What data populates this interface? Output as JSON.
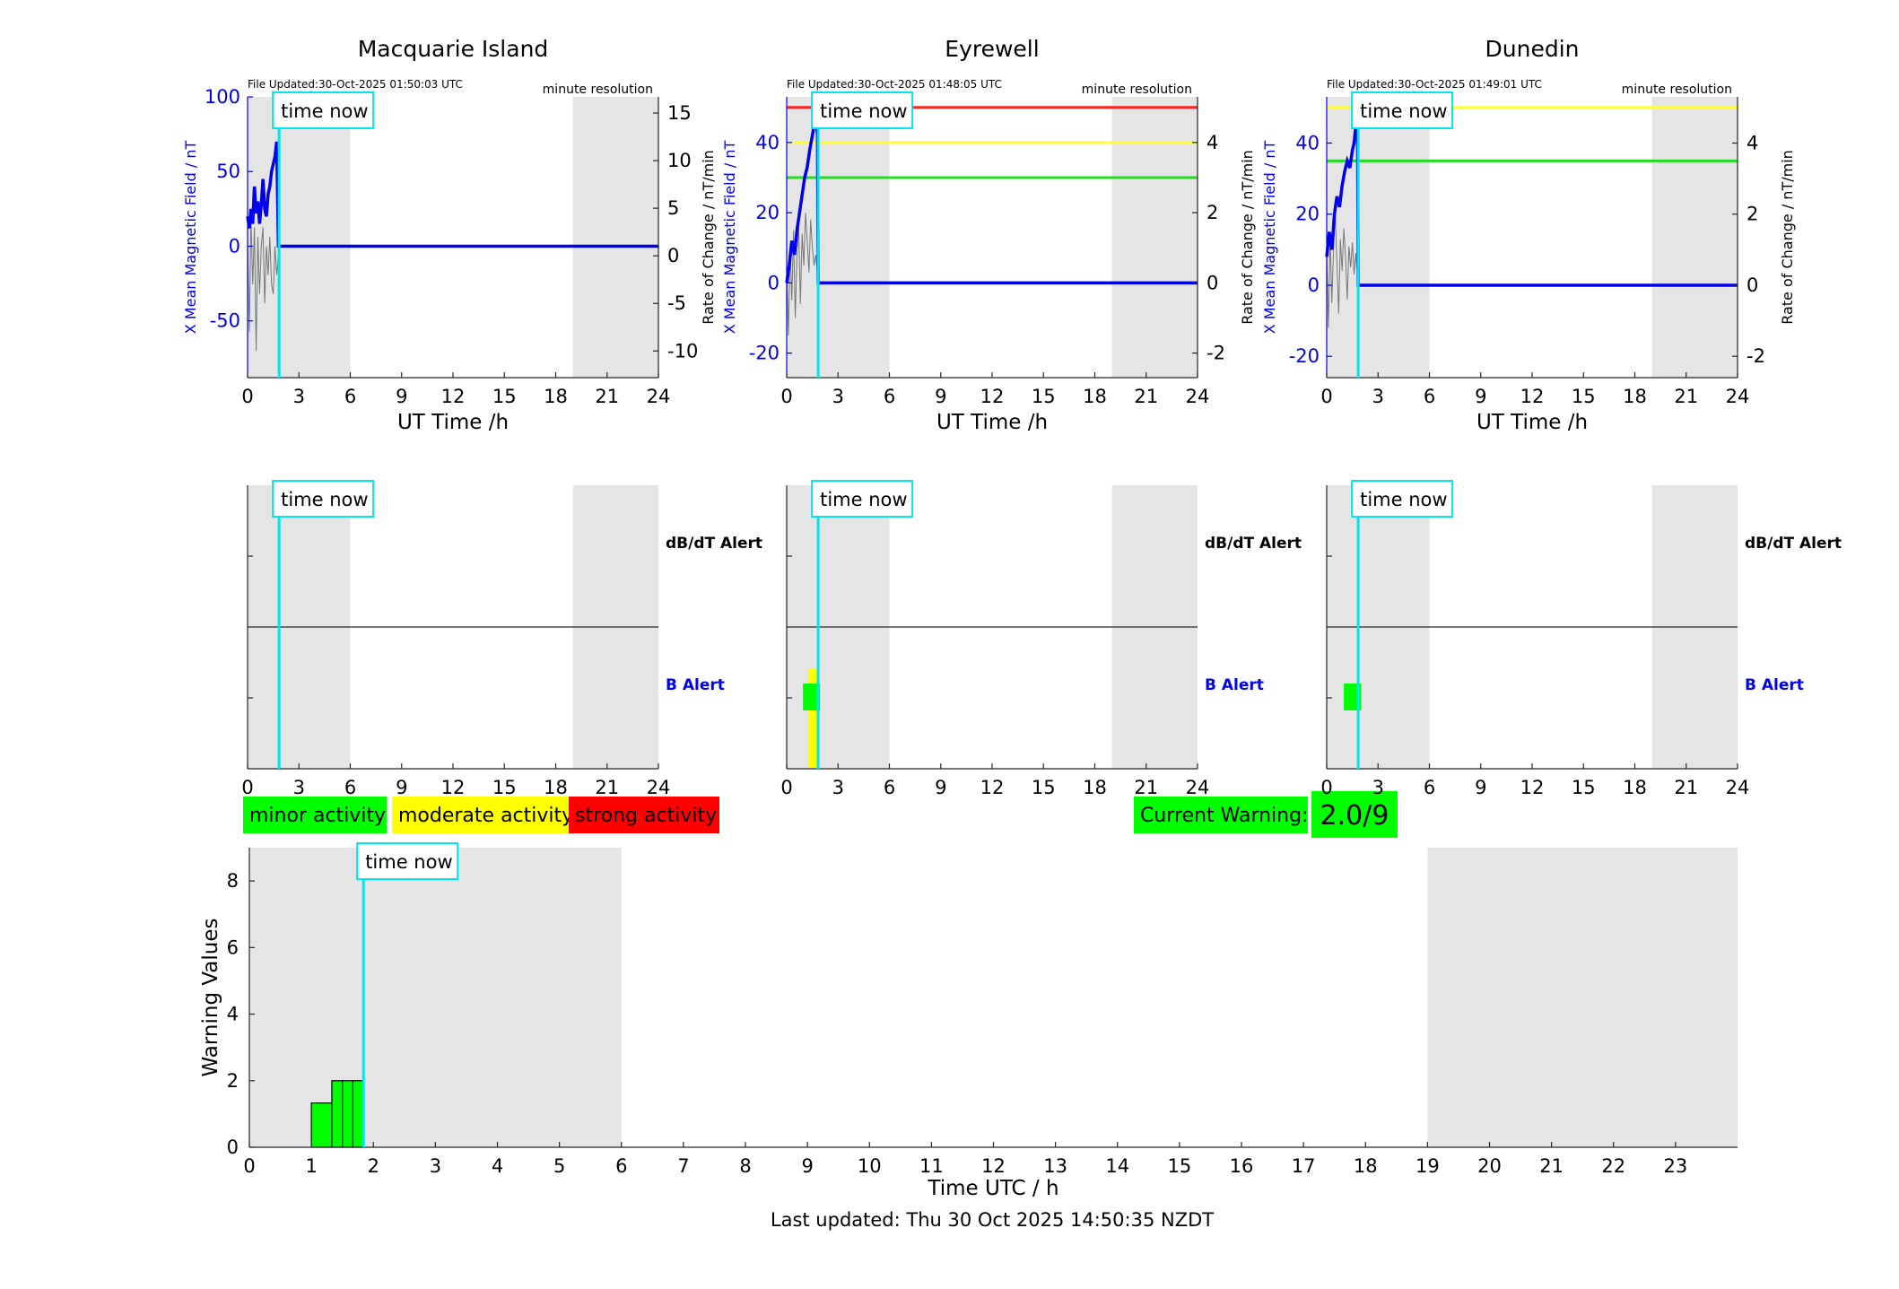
{
  "page": {
    "footer": "Last updated: Thu 30 Oct 2025 14:50:35 NZDT"
  },
  "colors": {
    "series_blue": "#0000ee",
    "rate_gray": "#777777",
    "time_now": "#00e5ee",
    "night_shade": "#e5e5e5",
    "minor": "#00ff00",
    "moderate": "#ffff00",
    "strong": "#ff0000",
    "threshold_green": "#22dd22",
    "threshold_yellow": "#ffff33",
    "threshold_red": "#ff2222"
  },
  "legend": {
    "minor": "minor activity",
    "moderate": "moderate activity",
    "strong": "strong activity"
  },
  "current_warning": {
    "label": "Current Warning:",
    "value": "2.0/9"
  },
  "chart_data": [
    {
      "type": "line",
      "title": "Macquarie Island",
      "file_updated": "File Updated:30-Oct-2025 01:50:03 UTC",
      "resolution": "minute resolution",
      "time_now_label": "time now",
      "time_now_h": 1.84,
      "xlabel": "UT Time /h",
      "xlim": [
        0,
        24
      ],
      "xticks": [
        0,
        3,
        6,
        9,
        12,
        15,
        18,
        21,
        24
      ],
      "ylabel_left": "X Mean Magnetic Field / nT",
      "ylim_left": [
        -88,
        100
      ],
      "yticks_left": [
        -50,
        0,
        50,
        100
      ],
      "ylabel_right": "Rate of Change / nT/min",
      "ylim_right": [
        -12.8,
        16.7
      ],
      "yticks_right": [
        -10,
        -5,
        0,
        5,
        10,
        15
      ],
      "night_shading_h": [
        [
          0,
          6
        ],
        [
          19,
          24
        ]
      ],
      "thresholds": [],
      "series": [
        {
          "name": "X Mean Magnetic Field",
          "axis": "left",
          "x": [
            0,
            0.1,
            0.2,
            0.3,
            0.4,
            0.5,
            0.6,
            0.7,
            0.8,
            0.9,
            1.0,
            1.1,
            1.2,
            1.3,
            1.4,
            1.5,
            1.6,
            1.7,
            1.8,
            1.84,
            2,
            24
          ],
          "y": [
            20,
            12,
            25,
            15,
            40,
            22,
            30,
            15,
            28,
            45,
            25,
            20,
            35,
            40,
            50,
            55,
            60,
            70,
            0,
            0,
            0,
            0
          ]
        },
        {
          "name": "Rate of Change",
          "axis": "right",
          "x": [
            0,
            0.1,
            0.2,
            0.3,
            0.4,
            0.5,
            0.6,
            0.7,
            0.8,
            0.9,
            1.0,
            1.1,
            1.2,
            1.3,
            1.4,
            1.5,
            1.6,
            1.7,
            1.8,
            1.84
          ],
          "y": [
            2,
            -8,
            4,
            -3,
            3,
            -10,
            2,
            -4,
            1,
            3,
            -5,
            1,
            -2,
            2,
            -3,
            -4,
            1,
            -2,
            0,
            0
          ]
        }
      ]
    },
    {
      "type": "line",
      "title": "Eyrewell",
      "file_updated": "File Updated:30-Oct-2025 01:48:05 UTC",
      "resolution": "minute resolution",
      "time_now_label": "time now",
      "time_now_h": 1.84,
      "xlabel": "UT Time /h",
      "xlim": [
        0,
        24
      ],
      "xticks": [
        0,
        3,
        6,
        9,
        12,
        15,
        18,
        21,
        24
      ],
      "ylabel_left": "X Mean Magnetic Field / nT",
      "ylim_left": [
        -27,
        53
      ],
      "yticks_left": [
        -20,
        0,
        20,
        40
      ],
      "ylabel_right": "Rate of Change / nT/min",
      "ylim_right": [
        -2.7,
        5.3
      ],
      "yticks_right": [
        -2,
        0,
        2,
        4
      ],
      "night_shading_h": [
        [
          0,
          6
        ],
        [
          19,
          24
        ]
      ],
      "thresholds": [
        {
          "level": "red",
          "value": 50
        },
        {
          "level": "yellow",
          "value": 40
        },
        {
          "level": "green",
          "value": 30
        }
      ],
      "series": [
        {
          "name": "X Mean Magnetic Field",
          "axis": "left",
          "x": [
            0,
            0.15,
            0.3,
            0.45,
            0.6,
            0.75,
            0.9,
            1.05,
            1.2,
            1.35,
            1.5,
            1.6,
            1.7,
            1.8,
            1.84,
            2,
            24
          ],
          "y": [
            0,
            5,
            12,
            8,
            15,
            20,
            25,
            30,
            33,
            38,
            42,
            45,
            48,
            42,
            0,
            0,
            0
          ]
        },
        {
          "name": "Rate of Change",
          "axis": "right",
          "x": [
            0,
            0.1,
            0.2,
            0.3,
            0.4,
            0.5,
            0.6,
            0.7,
            0.8,
            0.9,
            1.0,
            1.1,
            1.2,
            1.3,
            1.4,
            1.5,
            1.6,
            1.7,
            1.84
          ],
          "y": [
            0.5,
            -1.5,
            1.0,
            -0.5,
            1.5,
            -1.0,
            0.8,
            1.6,
            -0.6,
            1.4,
            0.5,
            2.0,
            1.2,
            0.3,
            1.8,
            1.0,
            0.5,
            0.8,
            0
          ]
        }
      ]
    },
    {
      "type": "line",
      "title": "Dunedin",
      "file_updated": "File Updated:30-Oct-2025 01:49:01 UTC",
      "resolution": "minute resolution",
      "time_now_label": "time now",
      "time_now_h": 1.84,
      "xlabel": "UT Time /h",
      "xlim": [
        0,
        24
      ],
      "xticks": [
        0,
        3,
        6,
        9,
        12,
        15,
        18,
        21,
        24
      ],
      "ylabel_left": "X Mean Magnetic Field / nT",
      "ylim_left": [
        -26,
        53
      ],
      "yticks_left": [
        -20,
        0,
        20,
        40
      ],
      "ylabel_right": "Rate of Change / nT/min",
      "ylim_right": [
        -2.6,
        5.3
      ],
      "yticks_right": [
        -2,
        0,
        2,
        4
      ],
      "night_shading_h": [
        [
          0,
          6
        ],
        [
          19,
          24
        ]
      ],
      "thresholds": [
        {
          "level": "yellow",
          "value": 50
        },
        {
          "level": "green",
          "value": 35
        }
      ],
      "series": [
        {
          "name": "X Mean Magnetic Field",
          "axis": "left",
          "x": [
            0,
            0.15,
            0.3,
            0.45,
            0.6,
            0.75,
            0.9,
            1.05,
            1.2,
            1.35,
            1.5,
            1.6,
            1.7,
            1.8,
            1.84,
            2,
            24
          ],
          "y": [
            8,
            15,
            10,
            20,
            25,
            22,
            28,
            32,
            35,
            33,
            38,
            40,
            45,
            48,
            0,
            0,
            0
          ]
        },
        {
          "name": "Rate of Change",
          "axis": "right",
          "x": [
            0,
            0.1,
            0.2,
            0.3,
            0.4,
            0.5,
            0.6,
            0.7,
            0.8,
            0.9,
            1.0,
            1.1,
            1.2,
            1.3,
            1.4,
            1.5,
            1.6,
            1.7,
            1.84
          ],
          "y": [
            1.0,
            -1.2,
            1.4,
            -0.5,
            1.0,
            2.0,
            0.6,
            -0.8,
            1.3,
            0.4,
            1.6,
            0.8,
            -0.4,
            1.1,
            0.5,
            1.2,
            0.3,
            0.9,
            0
          ]
        }
      ]
    },
    {
      "type": "alert",
      "station": "Macquarie Island",
      "time_now_label": "time now",
      "time_now_h": 1.84,
      "xlim": [
        0,
        24
      ],
      "xticks": [
        0,
        3,
        6,
        9,
        12,
        15,
        18,
        21,
        24
      ],
      "night_shading_h": [
        [
          0,
          6
        ],
        [
          19,
          24
        ]
      ],
      "rows": [
        "dB/dT Alert",
        "B Alert"
      ],
      "alerts": []
    },
    {
      "type": "alert",
      "station": "Eyrewell",
      "time_now_label": "time now",
      "time_now_h": 1.84,
      "xlim": [
        0,
        24
      ],
      "xticks": [
        0,
        3,
        6,
        9,
        12,
        15,
        18,
        21,
        24
      ],
      "night_shading_h": [
        [
          0,
          6
        ],
        [
          19,
          24
        ]
      ],
      "rows": [
        "dB/dT Alert",
        "B Alert"
      ],
      "alerts": [
        {
          "row": "B Alert",
          "level": "moderate",
          "start_h": 1.25,
          "end_h": 1.85
        },
        {
          "row": "B Alert",
          "level": "minor",
          "start_h": 0.95,
          "end_h": 1.95
        }
      ]
    },
    {
      "type": "alert",
      "station": "Dunedin",
      "time_now_label": "time now",
      "time_now_h": 1.84,
      "xlim": [
        0,
        24
      ],
      "xticks": [
        0,
        3,
        6,
        9,
        12,
        15,
        18,
        21,
        24
      ],
      "night_shading_h": [
        [
          0,
          6
        ],
        [
          19,
          24
        ]
      ],
      "rows": [
        "dB/dT Alert",
        "B Alert"
      ],
      "alerts": [
        {
          "row": "B Alert",
          "level": "minor",
          "start_h": 1.0,
          "end_h": 2.0
        }
      ]
    },
    {
      "type": "bar",
      "time_now_label": "time now",
      "time_now_h": 1.84,
      "xlabel": "Time UTC / h",
      "ylabel": "Warning Values",
      "xlim": [
        0,
        24
      ],
      "ylim": [
        0,
        9
      ],
      "xticks": [
        0,
        1,
        2,
        3,
        4,
        5,
        6,
        7,
        8,
        9,
        10,
        11,
        12,
        13,
        14,
        15,
        16,
        17,
        18,
        19,
        20,
        21,
        22,
        23
      ],
      "yticks": [
        0,
        2,
        4,
        6,
        8
      ],
      "night_shading_h": [
        [
          0,
          6
        ],
        [
          19,
          24
        ]
      ],
      "bars": [
        {
          "start_h": 1.0,
          "end_h": 1.33,
          "value": 1.33
        },
        {
          "start_h": 1.33,
          "end_h": 1.5,
          "value": 2.0
        },
        {
          "start_h": 1.5,
          "end_h": 1.67,
          "value": 2.0
        },
        {
          "start_h": 1.67,
          "end_h": 1.84,
          "value": 2.0
        }
      ]
    }
  ]
}
